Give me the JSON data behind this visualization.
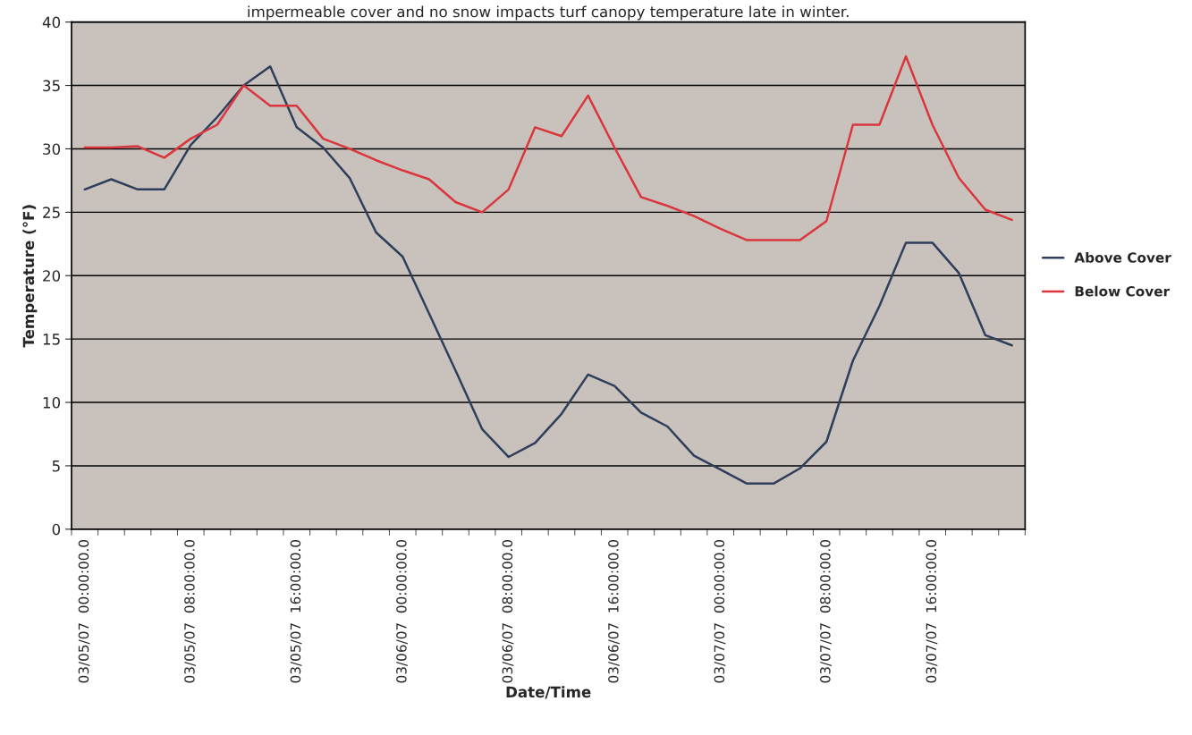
{
  "chart_data": {
    "type": "line",
    "title": "impermeable cover and no snow impacts turf canopy temperature late in winter.",
    "xlabel": "Date/Time",
    "ylabel": "Temperature (°F)",
    "categories": [
      "03/05/07  00:00:00.0",
      null,
      null,
      null,
      "03/05/07  08:00:00.0",
      null,
      null,
      null,
      "03/05/07  16:00:00.0",
      null,
      null,
      null,
      "03/06/07  00:00:00.0",
      null,
      null,
      null,
      "03/06/07  08:00:00.0",
      null,
      null,
      null,
      "03/06/07  16:00:00.0",
      null,
      null,
      null,
      "03/07/07  00:00:00.0",
      null,
      null,
      null,
      "03/07/07  08:00:00.0",
      null,
      null,
      null,
      "03/07/07  16:00:00.0",
      null,
      null,
      null
    ],
    "series": [
      {
        "name": "Above Cover",
        "color": "#2e3f5c",
        "values": [
          26.8,
          27.6,
          26.8,
          26.8,
          30.3,
          32.5,
          35.0,
          36.5,
          31.7,
          30.1,
          27.7,
          23.4,
          21.5,
          17.0,
          12.5,
          7.9,
          5.7,
          6.8,
          9.1,
          12.2,
          11.3,
          9.2,
          8.1,
          5.8,
          4.7,
          3.6,
          3.6,
          4.8,
          6.9,
          13.3,
          17.6,
          22.6,
          22.6,
          20.2,
          15.3,
          14.5
        ]
      },
      {
        "name": "Below Cover",
        "color": "#d9363e",
        "values": [
          30.1,
          30.1,
          30.2,
          29.3,
          30.8,
          31.9,
          35.0,
          33.4,
          33.4,
          30.8,
          30.0,
          29.1,
          28.3,
          27.6,
          25.8,
          25.0,
          26.8,
          31.7,
          31.0,
          34.2,
          30.1,
          26.2,
          25.5,
          24.7,
          23.7,
          22.8,
          22.8,
          22.8,
          24.3,
          31.9,
          31.9,
          37.3,
          31.9,
          27.7,
          25.2,
          24.4
        ]
      }
    ],
    "ylim": [
      0,
      40
    ],
    "yticks": [
      0,
      5,
      10,
      15,
      20,
      25,
      30,
      35,
      40
    ],
    "grid": "y",
    "legend": "right"
  }
}
